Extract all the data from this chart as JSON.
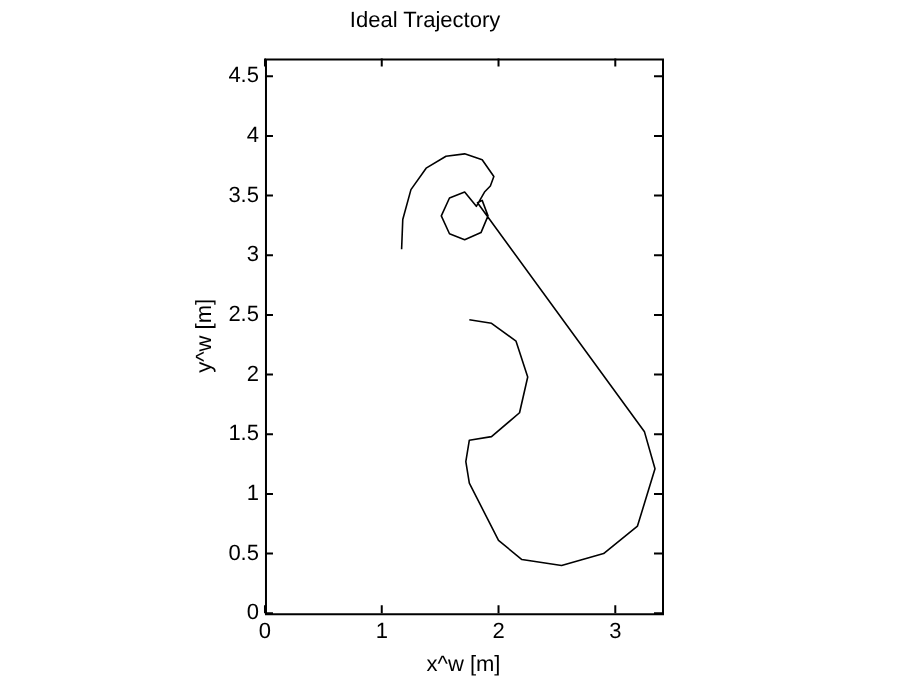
{
  "chart_data": {
    "type": "line",
    "title": "Ideal Trajectory",
    "xlabel": "x^w [m]",
    "ylabel": "y^w [m]",
    "series": [
      {
        "color": "#000000",
        "x": [
          1.17,
          1.18,
          1.25,
          1.38,
          1.55,
          1.71,
          1.86,
          1.96,
          1.93,
          1.88,
          1.81,
          1.71,
          1.58,
          1.51,
          1.58,
          1.71,
          1.85,
          1.91,
          1.86,
          1.82,
          3.25,
          3.34,
          3.19,
          2.9,
          2.54,
          2.2,
          2.0,
          1.75,
          1.72,
          1.75,
          1.94,
          2.18,
          2.25,
          2.15,
          1.94,
          1.75
        ],
        "values": [
          3.05,
          3.3,
          3.55,
          3.73,
          3.83,
          3.85,
          3.8,
          3.66,
          3.58,
          3.53,
          3.41,
          3.53,
          3.48,
          3.33,
          3.18,
          3.13,
          3.19,
          3.33,
          3.46,
          3.44,
          1.52,
          1.21,
          0.73,
          0.5,
          0.4,
          0.45,
          0.61,
          1.09,
          1.27,
          1.45,
          1.48,
          1.68,
          1.98,
          2.28,
          2.43,
          2.46
        ]
      }
    ],
    "xlim": [
      0,
      3.4
    ],
    "xticks": [
      0,
      1,
      2,
      3
    ],
    "ylim": [
      0,
      4.65
    ],
    "yticks": [
      0,
      0.5,
      1,
      1.5,
      2,
      2.5,
      3,
      3.5,
      4,
      4.5
    ],
    "grid": false,
    "legend": false,
    "marker": "none",
    "line_style": "solid"
  }
}
